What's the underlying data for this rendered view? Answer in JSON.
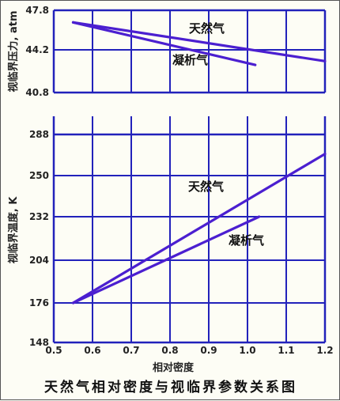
{
  "caption": "天然气相对密度与视临界参数关系图",
  "xlabel": "相对密度",
  "colors": {
    "grid": "#2222bb",
    "curve": "#4b1fd0",
    "background": "#fdfdf5",
    "text": "#222222"
  },
  "chart_data": [
    {
      "type": "line",
      "ylabel": "视临界压力, atm",
      "xlim": [
        0.5,
        1.2
      ],
      "ylim": [
        40.8,
        47.8
      ],
      "x_ticks": [
        "0.5",
        "0.6",
        "0.7",
        "0.8",
        "0.9",
        "1.0",
        "1.1",
        "1.2"
      ],
      "y_ticks": [
        {
          "label": "47.8",
          "value": 47.8
        },
        {
          "label": "44.2",
          "value": 44.2
        },
        {
          "label": "40.8",
          "value": 40.8
        }
      ],
      "grid": true,
      "series": [
        {
          "name": "天然气",
          "x": [
            0.55,
            1.2
          ],
          "y": [
            46.7,
            43.3
          ]
        },
        {
          "name": "凝析气",
          "x": [
            0.55,
            1.02
          ],
          "y": [
            46.7,
            43.0
          ]
        }
      ],
      "annotations": [
        {
          "text": "天然气",
          "series": 0
        },
        {
          "text": "凝析气",
          "series": 1
        }
      ]
    },
    {
      "type": "line",
      "ylabel": "视临界温度, K",
      "xlim": [
        0.5,
        1.2
      ],
      "ylim": [
        148,
        288
      ],
      "x_ticks": [
        "0.5",
        "0.6",
        "0.7",
        "0.8",
        "0.9",
        "1.0",
        "1.1",
        "1.2"
      ],
      "y_ticks": [
        {
          "label": "288",
          "value": 288
        },
        {
          "label": "250",
          "value": 250
        },
        {
          "label": "232",
          "value": 232
        },
        {
          "label": "204",
          "value": 204
        },
        {
          "label": "176",
          "value": 176
        },
        {
          "label": "148",
          "value": 148
        }
      ],
      "grid": true,
      "series": [
        {
          "name": "天然气",
          "x": [
            0.55,
            1.2
          ],
          "y": [
            176,
            270
          ]
        },
        {
          "name": "凝析气",
          "x": [
            0.55,
            1.03
          ],
          "y": [
            176,
            232
          ]
        }
      ],
      "annotations": [
        {
          "text": "天然气",
          "series": 0
        },
        {
          "text": "凝析气",
          "series": 1
        }
      ]
    }
  ]
}
